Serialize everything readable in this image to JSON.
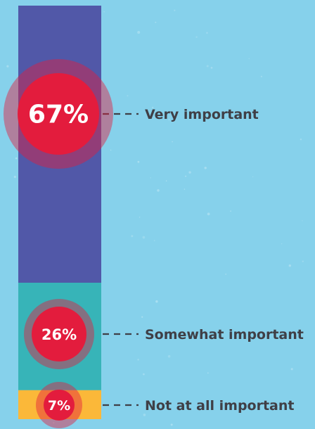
{
  "chart_data": {
    "type": "bar",
    "stacked": true,
    "orientation": "vertical",
    "title": "",
    "categories": [
      "Very important",
      "Somewhat important",
      "Not at all important"
    ],
    "values": [
      67,
      26,
      7
    ],
    "value_labels": [
      "67%",
      "26%",
      "7%"
    ],
    "unit": "%",
    "colors": [
      "#5158a8",
      "#37b4b8",
      "#fbb839"
    ],
    "marker_color": "#e31c3d",
    "background": "#86d1eb",
    "grid": false,
    "legend": "none"
  }
}
